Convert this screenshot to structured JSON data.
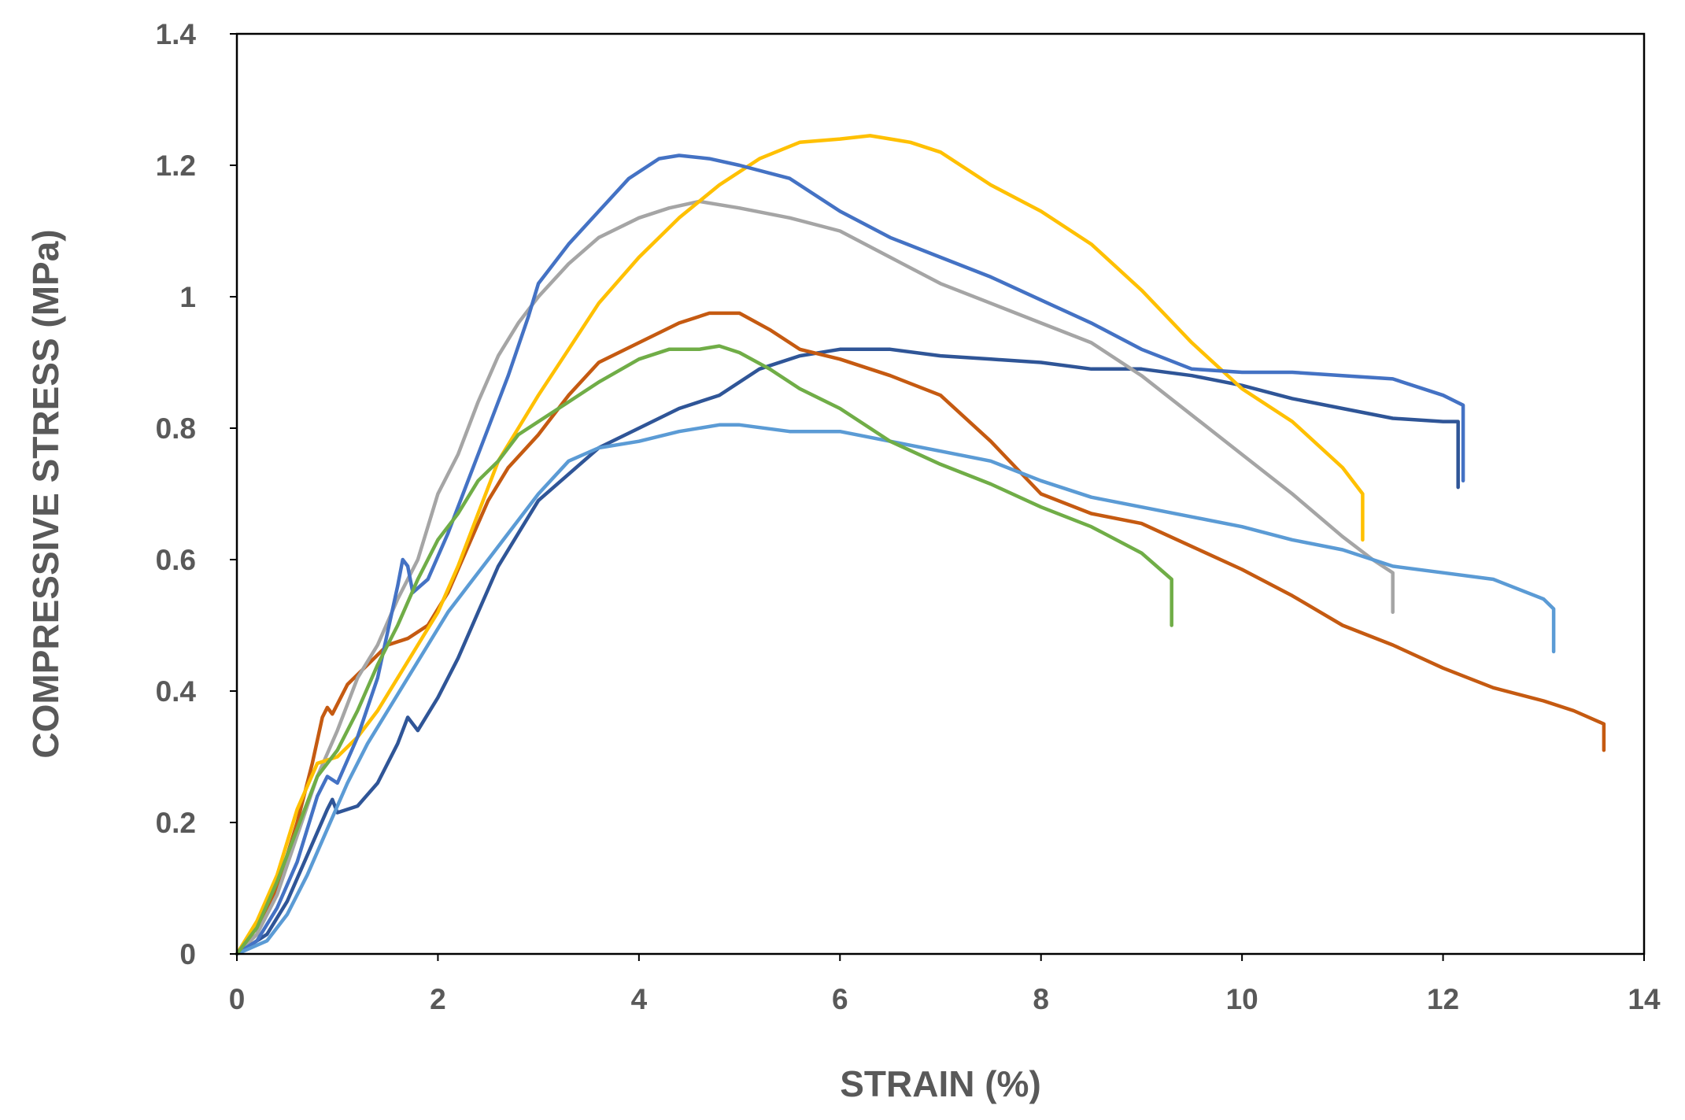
{
  "chart_data": {
    "type": "line",
    "title": "",
    "xlabel": "STRAIN (%)",
    "ylabel": "COMPRESSIVE STRESS (MPa)",
    "xlim": [
      0,
      14
    ],
    "ylim": [
      0,
      1.4
    ],
    "x_ticks": [
      0,
      2,
      4,
      6,
      8,
      10,
      12,
      14
    ],
    "y_ticks": [
      0,
      0.2,
      0.4,
      0.6,
      0.8,
      1,
      1.2,
      1.4
    ],
    "x_tick_labels": [
      "0",
      "2",
      "4",
      "6",
      "8",
      "10",
      "12",
      "14"
    ],
    "y_tick_labels": [
      "0",
      "0.2",
      "0.4",
      "0.6",
      "0.8",
      "1",
      "1.2",
      "1.4"
    ],
    "grid": false,
    "legend": "none",
    "series": [
      {
        "name": "sample-dark-blue",
        "color": "#2F5597",
        "points": [
          [
            0,
            0
          ],
          [
            0.3,
            0.03
          ],
          [
            0.5,
            0.08
          ],
          [
            0.7,
            0.15
          ],
          [
            0.9,
            0.22
          ],
          [
            0.95,
            0.235
          ],
          [
            1.0,
            0.215
          ],
          [
            1.2,
            0.225
          ],
          [
            1.4,
            0.26
          ],
          [
            1.6,
            0.32
          ],
          [
            1.7,
            0.36
          ],
          [
            1.8,
            0.34
          ],
          [
            2.0,
            0.39
          ],
          [
            2.2,
            0.45
          ],
          [
            2.4,
            0.52
          ],
          [
            2.6,
            0.59
          ],
          [
            2.8,
            0.64
          ],
          [
            3.0,
            0.69
          ],
          [
            3.3,
            0.73
          ],
          [
            3.6,
            0.77
          ],
          [
            4.0,
            0.8
          ],
          [
            4.4,
            0.83
          ],
          [
            4.8,
            0.85
          ],
          [
            5.2,
            0.89
          ],
          [
            5.6,
            0.91
          ],
          [
            6.0,
            0.92
          ],
          [
            6.5,
            0.92
          ],
          [
            7.0,
            0.91
          ],
          [
            7.5,
            0.905
          ],
          [
            8.0,
            0.9
          ],
          [
            8.5,
            0.89
          ],
          [
            9.0,
            0.89
          ],
          [
            9.5,
            0.88
          ],
          [
            10.0,
            0.865
          ],
          [
            10.5,
            0.845
          ],
          [
            11.0,
            0.83
          ],
          [
            11.5,
            0.815
          ],
          [
            12.0,
            0.81
          ],
          [
            12.15,
            0.81
          ],
          [
            12.15,
            0.71
          ]
        ]
      },
      {
        "name": "sample-orange",
        "color": "#C55A11",
        "points": [
          [
            0,
            0
          ],
          [
            0.2,
            0.03
          ],
          [
            0.4,
            0.1
          ],
          [
            0.6,
            0.2
          ],
          [
            0.75,
            0.29
          ],
          [
            0.85,
            0.36
          ],
          [
            0.9,
            0.375
          ],
          [
            0.95,
            0.365
          ],
          [
            1.1,
            0.41
          ],
          [
            1.3,
            0.44
          ],
          [
            1.5,
            0.47
          ],
          [
            1.7,
            0.48
          ],
          [
            1.9,
            0.5
          ],
          [
            2.1,
            0.55
          ],
          [
            2.3,
            0.62
          ],
          [
            2.5,
            0.69
          ],
          [
            2.7,
            0.74
          ],
          [
            3.0,
            0.79
          ],
          [
            3.3,
            0.85
          ],
          [
            3.6,
            0.9
          ],
          [
            4.0,
            0.93
          ],
          [
            4.4,
            0.96
          ],
          [
            4.7,
            0.975
          ],
          [
            5.0,
            0.975
          ],
          [
            5.3,
            0.95
          ],
          [
            5.6,
            0.92
          ],
          [
            6.0,
            0.905
          ],
          [
            6.5,
            0.88
          ],
          [
            7.0,
            0.85
          ],
          [
            7.5,
            0.78
          ],
          [
            8.0,
            0.7
          ],
          [
            8.5,
            0.67
          ],
          [
            9.0,
            0.655
          ],
          [
            9.5,
            0.62
          ],
          [
            10.0,
            0.585
          ],
          [
            10.5,
            0.545
          ],
          [
            11.0,
            0.5
          ],
          [
            11.5,
            0.47
          ],
          [
            12.0,
            0.435
          ],
          [
            12.5,
            0.405
          ],
          [
            13.0,
            0.385
          ],
          [
            13.3,
            0.37
          ],
          [
            13.6,
            0.35
          ],
          [
            13.6,
            0.31
          ]
        ]
      },
      {
        "name": "sample-gray",
        "color": "#A5A5A5",
        "points": [
          [
            0,
            0
          ],
          [
            0.2,
            0.03
          ],
          [
            0.4,
            0.09
          ],
          [
            0.6,
            0.18
          ],
          [
            0.8,
            0.27
          ],
          [
            1.0,
            0.34
          ],
          [
            1.2,
            0.42
          ],
          [
            1.4,
            0.47
          ],
          [
            1.6,
            0.54
          ],
          [
            1.8,
            0.6
          ],
          [
            2.0,
            0.7
          ],
          [
            2.2,
            0.76
          ],
          [
            2.4,
            0.84
          ],
          [
            2.6,
            0.91
          ],
          [
            2.8,
            0.96
          ],
          [
            3.0,
            1.0
          ],
          [
            3.3,
            1.05
          ],
          [
            3.6,
            1.09
          ],
          [
            4.0,
            1.12
          ],
          [
            4.3,
            1.135
          ],
          [
            4.6,
            1.145
          ],
          [
            5.0,
            1.135
          ],
          [
            5.5,
            1.12
          ],
          [
            6.0,
            1.1
          ],
          [
            6.5,
            1.06
          ],
          [
            7.0,
            1.02
          ],
          [
            7.5,
            0.99
          ],
          [
            8.0,
            0.96
          ],
          [
            8.5,
            0.93
          ],
          [
            9.0,
            0.88
          ],
          [
            9.5,
            0.82
          ],
          [
            10.0,
            0.76
          ],
          [
            10.5,
            0.7
          ],
          [
            11.0,
            0.635
          ],
          [
            11.3,
            0.6
          ],
          [
            11.5,
            0.58
          ],
          [
            11.5,
            0.52
          ]
        ]
      },
      {
        "name": "sample-yellow",
        "color": "#FFC000",
        "points": [
          [
            0,
            0
          ],
          [
            0.2,
            0.05
          ],
          [
            0.4,
            0.12
          ],
          [
            0.6,
            0.22
          ],
          [
            0.8,
            0.29
          ],
          [
            1.0,
            0.3
          ],
          [
            1.2,
            0.33
          ],
          [
            1.4,
            0.37
          ],
          [
            1.6,
            0.42
          ],
          [
            1.8,
            0.47
          ],
          [
            2.0,
            0.52
          ],
          [
            2.2,
            0.59
          ],
          [
            2.4,
            0.67
          ],
          [
            2.6,
            0.75
          ],
          [
            2.8,
            0.8
          ],
          [
            3.0,
            0.85
          ],
          [
            3.3,
            0.92
          ],
          [
            3.6,
            0.99
          ],
          [
            4.0,
            1.06
          ],
          [
            4.4,
            1.12
          ],
          [
            4.8,
            1.17
          ],
          [
            5.2,
            1.21
          ],
          [
            5.6,
            1.235
          ],
          [
            6.0,
            1.24
          ],
          [
            6.3,
            1.245
          ],
          [
            6.7,
            1.235
          ],
          [
            7.0,
            1.22
          ],
          [
            7.5,
            1.17
          ],
          [
            8.0,
            1.13
          ],
          [
            8.5,
            1.08
          ],
          [
            9.0,
            1.01
          ],
          [
            9.5,
            0.93
          ],
          [
            10.0,
            0.86
          ],
          [
            10.5,
            0.81
          ],
          [
            11.0,
            0.74
          ],
          [
            11.2,
            0.7
          ],
          [
            11.2,
            0.63
          ]
        ]
      },
      {
        "name": "sample-blue",
        "color": "#4472C4",
        "points": [
          [
            0,
            0
          ],
          [
            0.2,
            0.02
          ],
          [
            0.4,
            0.07
          ],
          [
            0.6,
            0.14
          ],
          [
            0.8,
            0.24
          ],
          [
            0.9,
            0.27
          ],
          [
            1.0,
            0.26
          ],
          [
            1.2,
            0.33
          ],
          [
            1.4,
            0.42
          ],
          [
            1.6,
            0.56
          ],
          [
            1.65,
            0.6
          ],
          [
            1.7,
            0.59
          ],
          [
            1.75,
            0.55
          ],
          [
            1.9,
            0.57
          ],
          [
            2.1,
            0.64
          ],
          [
            2.3,
            0.72
          ],
          [
            2.5,
            0.8
          ],
          [
            2.7,
            0.88
          ],
          [
            2.9,
            0.97
          ],
          [
            3.0,
            1.02
          ],
          [
            3.1,
            1.04
          ],
          [
            3.3,
            1.08
          ],
          [
            3.6,
            1.13
          ],
          [
            3.9,
            1.18
          ],
          [
            4.2,
            1.21
          ],
          [
            4.4,
            1.215
          ],
          [
            4.7,
            1.21
          ],
          [
            5.0,
            1.2
          ],
          [
            5.5,
            1.18
          ],
          [
            6.0,
            1.13
          ],
          [
            6.5,
            1.09
          ],
          [
            7.0,
            1.06
          ],
          [
            7.5,
            1.03
          ],
          [
            8.0,
            0.995
          ],
          [
            8.5,
            0.96
          ],
          [
            9.0,
            0.92
          ],
          [
            9.5,
            0.89
          ],
          [
            10.0,
            0.885
          ],
          [
            10.5,
            0.885
          ],
          [
            11.0,
            0.88
          ],
          [
            11.5,
            0.875
          ],
          [
            12.0,
            0.85
          ],
          [
            12.2,
            0.835
          ],
          [
            12.2,
            0.72
          ]
        ]
      },
      {
        "name": "sample-light-blue",
        "color": "#5B9BD5",
        "points": [
          [
            0,
            0
          ],
          [
            0.3,
            0.02
          ],
          [
            0.5,
            0.06
          ],
          [
            0.7,
            0.12
          ],
          [
            0.9,
            0.19
          ],
          [
            1.1,
            0.26
          ],
          [
            1.3,
            0.32
          ],
          [
            1.5,
            0.37
          ],
          [
            1.7,
            0.42
          ],
          [
            1.9,
            0.47
          ],
          [
            2.1,
            0.52
          ],
          [
            2.3,
            0.56
          ],
          [
            2.5,
            0.6
          ],
          [
            2.7,
            0.64
          ],
          [
            3.0,
            0.7
          ],
          [
            3.3,
            0.75
          ],
          [
            3.6,
            0.77
          ],
          [
            4.0,
            0.78
          ],
          [
            4.4,
            0.795
          ],
          [
            4.8,
            0.805
          ],
          [
            5.0,
            0.805
          ],
          [
            5.5,
            0.795
          ],
          [
            6.0,
            0.795
          ],
          [
            6.5,
            0.78
          ],
          [
            7.0,
            0.765
          ],
          [
            7.5,
            0.75
          ],
          [
            8.0,
            0.72
          ],
          [
            8.5,
            0.695
          ],
          [
            9.0,
            0.68
          ],
          [
            9.5,
            0.665
          ],
          [
            10.0,
            0.65
          ],
          [
            10.5,
            0.63
          ],
          [
            11.0,
            0.615
          ],
          [
            11.5,
            0.59
          ],
          [
            12.0,
            0.58
          ],
          [
            12.5,
            0.57
          ],
          [
            13.0,
            0.54
          ],
          [
            13.1,
            0.525
          ],
          [
            13.1,
            0.46
          ]
        ]
      },
      {
        "name": "sample-green",
        "color": "#70AD47",
        "points": [
          [
            0,
            0
          ],
          [
            0.2,
            0.04
          ],
          [
            0.4,
            0.11
          ],
          [
            0.6,
            0.19
          ],
          [
            0.8,
            0.27
          ],
          [
            1.0,
            0.31
          ],
          [
            1.2,
            0.37
          ],
          [
            1.4,
            0.44
          ],
          [
            1.6,
            0.5
          ],
          [
            1.8,
            0.57
          ],
          [
            2.0,
            0.63
          ],
          [
            2.2,
            0.67
          ],
          [
            2.4,
            0.72
          ],
          [
            2.6,
            0.75
          ],
          [
            2.8,
            0.79
          ],
          [
            3.0,
            0.81
          ],
          [
            3.3,
            0.84
          ],
          [
            3.6,
            0.87
          ],
          [
            4.0,
            0.905
          ],
          [
            4.3,
            0.92
          ],
          [
            4.6,
            0.92
          ],
          [
            4.8,
            0.925
          ],
          [
            5.0,
            0.915
          ],
          [
            5.3,
            0.89
          ],
          [
            5.6,
            0.86
          ],
          [
            6.0,
            0.83
          ],
          [
            6.5,
            0.78
          ],
          [
            7.0,
            0.745
          ],
          [
            7.5,
            0.715
          ],
          [
            8.0,
            0.68
          ],
          [
            8.5,
            0.65
          ],
          [
            9.0,
            0.61
          ],
          [
            9.3,
            0.57
          ],
          [
            9.3,
            0.5
          ]
        ]
      }
    ]
  }
}
